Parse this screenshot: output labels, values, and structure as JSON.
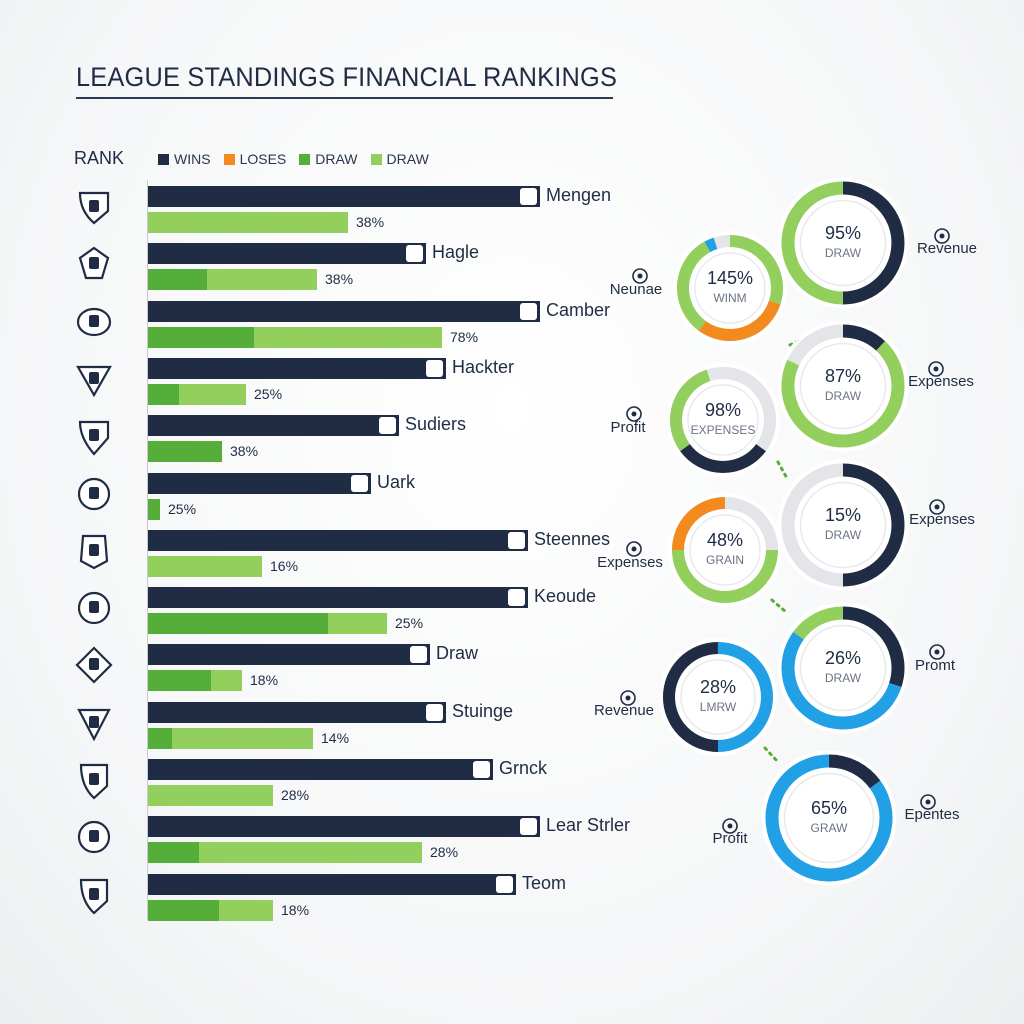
{
  "title": "LEAGUE STANDINGS FINANCIAL RANKINGS",
  "rank_header": "RANK",
  "colors": {
    "navy": "#1f2c44",
    "green": "#92cf5d",
    "green_dark": "#55ae3a",
    "orange": "#f28a1e",
    "blue": "#22a0e6",
    "light_gray": "#e3e5e8"
  },
  "legend": [
    {
      "label": "WINS",
      "color": "#1f2c44"
    },
    {
      "label": "LOSES",
      "color": "#f28a1e"
    },
    {
      "label": "DRAW",
      "color": "#55ae3a"
    },
    {
      "label": "DRAW",
      "color": "#92cf5d"
    }
  ],
  "chart_data": [
    {
      "type": "bar",
      "xlim": [
        0,
        100
      ],
      "categories": [
        "Mengen",
        "Hagle",
        "Camber",
        "Hackter",
        "Sudiers",
        "Uark",
        "Steennes",
        "Keoude",
        "Draw",
        "Stuinge",
        "Grnck",
        "Lear Strler",
        "Teom"
      ],
      "series": [
        {
          "name": "WINS",
          "values": [
            100,
            71,
            100,
            76,
            64,
            57,
            97,
            97,
            72,
            76,
            88,
            100,
            94
          ]
        },
        {
          "name": "DRAW",
          "values": [
            0,
            15,
            27,
            8,
            19,
            3,
            0,
            46,
            16,
            6,
            0,
            13,
            18
          ]
        },
        {
          "name": "DRAW",
          "values": [
            51,
            43,
            75,
            25,
            19,
            0,
            29,
            61,
            24,
            42,
            32,
            70,
            32
          ]
        }
      ],
      "percent_labels": [
        "38%",
        "38%",
        "78%",
        "25%",
        "38%",
        "25%",
        "16%",
        "25%",
        "18%",
        "14%",
        "28%",
        "28%",
        "18%"
      ]
    },
    {
      "type": "pie",
      "donuts": [
        {
          "value": "95%",
          "sublabel": "DRAW",
          "side_label": "Revenue",
          "segments": [
            {
              "color": "navy",
              "fraction": 0.5
            },
            {
              "color": "green",
              "fraction": 0.5
            }
          ]
        },
        {
          "value": "145%",
          "sublabel": "WINM",
          "side_label": "Neunae",
          "segments": [
            {
              "color": "green",
              "fraction": 0.3
            },
            {
              "color": "orange",
              "fraction": 0.3
            },
            {
              "color": "green",
              "fraction": 0.32
            },
            {
              "color": "blue",
              "fraction": 0.03
            }
          ]
        },
        {
          "value": "87%",
          "sublabel": "DRAW",
          "side_label": "Expenses",
          "segments": [
            {
              "color": "navy",
              "fraction": 0.12
            },
            {
              "color": "green",
              "fraction": 0.7
            },
            {
              "color": "light_gray",
              "fraction": 0.18
            }
          ]
        },
        {
          "value": "98%",
          "sublabel": "EXPENSES",
          "side_label": "Profit",
          "segments": [
            {
              "color": "light_gray",
              "fraction": 0.35
            },
            {
              "color": "navy",
              "fraction": 0.3
            },
            {
              "color": "green",
              "fraction": 0.3
            }
          ]
        },
        {
          "value": "15%",
          "sublabel": "DRAW",
          "side_label": "Expenses",
          "segments": [
            {
              "color": "navy",
              "fraction": 0.5
            },
            {
              "color": "light_gray",
              "fraction": 0.5
            }
          ]
        },
        {
          "value": "48%",
          "sublabel": "GRAIN",
          "side_label": "Expenses",
          "segments": [
            {
              "color": "light_gray",
              "fraction": 0.25
            },
            {
              "color": "green",
              "fraction": 0.5
            },
            {
              "color": "orange",
              "fraction": 0.25
            }
          ]
        },
        {
          "value": "26%",
          "sublabel": "DRAW",
          "side_label": "Promt",
          "segments": [
            {
              "color": "navy",
              "fraction": 0.3
            },
            {
              "color": "blue",
              "fraction": 0.55
            },
            {
              "color": "green",
              "fraction": 0.15
            }
          ]
        },
        {
          "value": "28%",
          "sublabel": "LMRW",
          "side_label": "Revenue",
          "segments": [
            {
              "color": "blue",
              "fraction": 0.5
            },
            {
              "color": "navy",
              "fraction": 0.5
            }
          ]
        },
        {
          "value": "65%",
          "sublabel": "GRAW",
          "side_label": "Epentes",
          "segments": [
            {
              "color": "navy",
              "fraction": 0.15
            },
            {
              "color": "blue",
              "fraction": 0.85
            }
          ]
        },
        {
          "value": "",
          "sublabel": "",
          "side_label": "Profit",
          "segments": []
        }
      ]
    }
  ]
}
